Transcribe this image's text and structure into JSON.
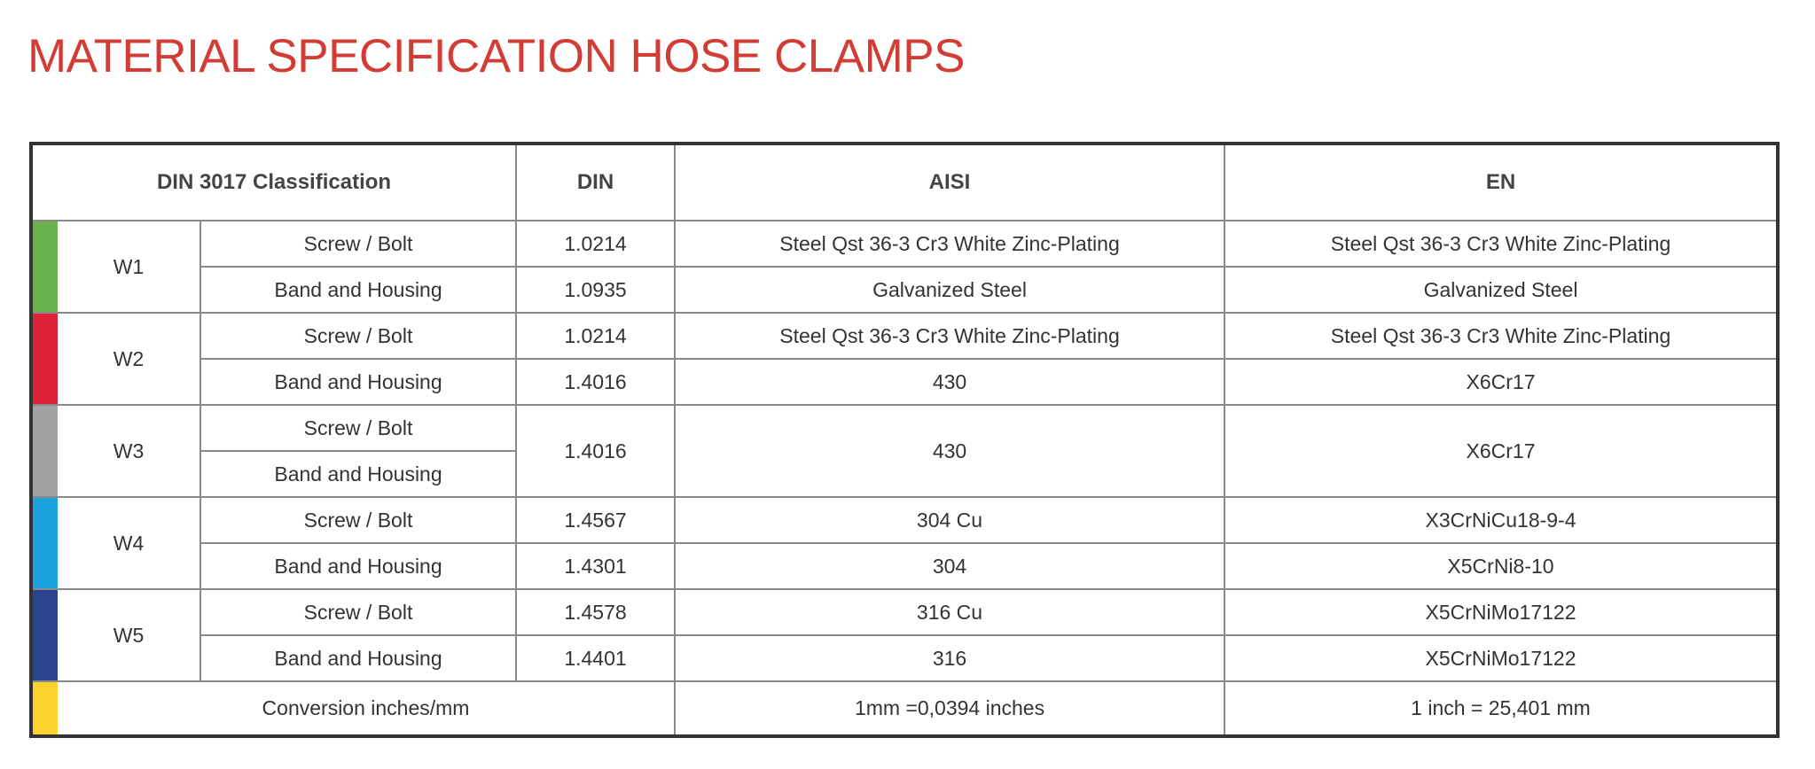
{
  "title": "MATERIAL SPECIFICATION HOSE CLAMPS",
  "headers": {
    "classification": "DIN 3017 Classification",
    "din": "DIN",
    "aisi": "AISI",
    "en": "EN"
  },
  "groups": [
    {
      "name": "W1",
      "color": "#68b14e",
      "rows": [
        {
          "part": "Screw / Bolt",
          "din": "1.0214",
          "aisi": "Steel Qst 36-3 Cr3 White Zinc-Plating",
          "en": "Steel Qst 36-3 Cr3 White Zinc-Plating"
        },
        {
          "part": "Band and Housing",
          "din": "1.0935",
          "aisi": "Galvanized Steel",
          "en": "Galvanized Steel"
        }
      ]
    },
    {
      "name": "W2",
      "color": "#e02238",
      "rows": [
        {
          "part": "Screw / Bolt",
          "din": "1.0214",
          "aisi": "Steel Qst 36-3 Cr3 White Zinc-Plating",
          "en": "Steel Qst 36-3 Cr3 White Zinc-Plating"
        },
        {
          "part": "Band and Housing",
          "din": "1.4016",
          "aisi": "430",
          "en": "X6Cr17"
        }
      ]
    },
    {
      "name": "W3",
      "color": "#a2a2a2",
      "rows": [
        {
          "part": "Screw / Bolt",
          "din": "1.4016",
          "aisi": "430",
          "en": "X6Cr17"
        },
        {
          "part": "Band and Housing"
        }
      ]
    },
    {
      "name": "W4",
      "color": "#1ba3e0",
      "rows": [
        {
          "part": "Screw / Bolt",
          "din": "1.4567",
          "aisi": "304 Cu",
          "en": "X3CrNiCu18-9-4"
        },
        {
          "part": "Band and Housing",
          "din": "1.4301",
          "aisi": "304",
          "en": "X5CrNi8-10"
        }
      ]
    },
    {
      "name": "W5",
      "color": "#2a438e",
      "rows": [
        {
          "part": "Screw / Bolt",
          "din": "1.4578",
          "aisi": "316 Cu",
          "en": "X5CrNiMo17122"
        },
        {
          "part": "Band and Housing",
          "din": "1.4401",
          "aisi": "316",
          "en": "X5CrNiMo17122"
        }
      ]
    }
  ],
  "conversion": {
    "label": "Conversion inches/mm",
    "aisi": "1mm =0,0394 inches",
    "en": "1 inch = 25,401 mm",
    "color": "#fdd22c"
  }
}
